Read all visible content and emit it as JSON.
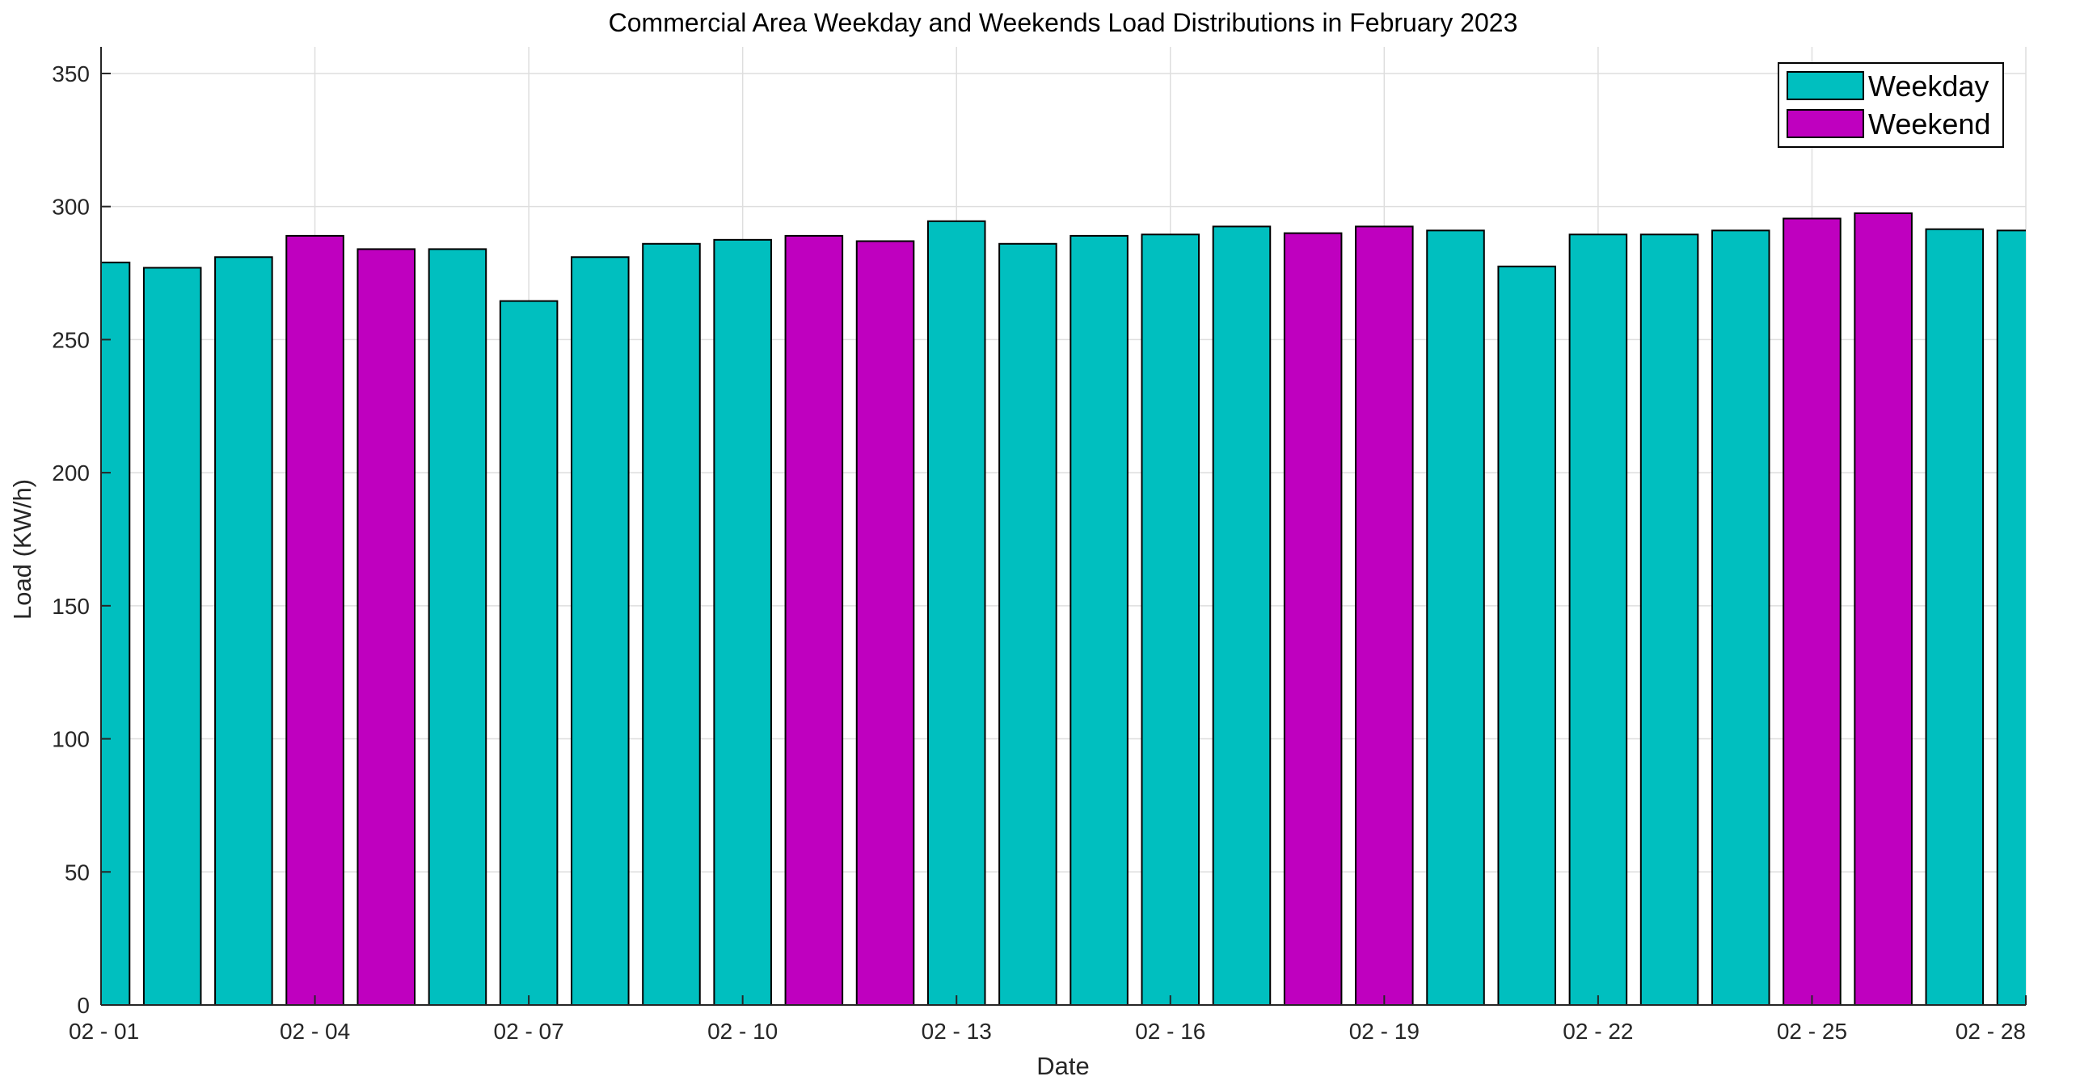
{
  "chart_data": {
    "type": "bar",
    "title": "Commercial Area Weekday and Weekends Load Distributions in February 2023",
    "xlabel": "Date",
    "ylabel": "Load (KW/h)",
    "ylim": [
      0,
      360
    ],
    "yticks": [
      0,
      50,
      100,
      150,
      200,
      250,
      300,
      350
    ],
    "xlim": [
      "02-01",
      "02-28"
    ],
    "xtick_labels": [
      "02 - 01",
      "02 - 04",
      "02 - 07",
      "02 - 10",
      "02 - 13",
      "02 - 16",
      "02 - 19",
      "02 - 22",
      "02 - 25",
      "02 - 28"
    ],
    "xtick_index": [
      0,
      3,
      6,
      9,
      12,
      15,
      18,
      21,
      24,
      27
    ],
    "grid": true,
    "legend_position": "top-right",
    "series_colors": {
      "Weekday": "#00bfbf",
      "Weekend": "#bf00bf"
    },
    "legend": [
      {
        "name": "Weekday",
        "color": "#00bfbf"
      },
      {
        "name": "Weekend",
        "color": "#bf00bf"
      }
    ],
    "dates": [
      "02-01",
      "02-02",
      "02-03",
      "02-04",
      "02-05",
      "02-06",
      "02-07",
      "02-08",
      "02-09",
      "02-10",
      "02-11",
      "02-12",
      "02-13",
      "02-14",
      "02-15",
      "02-16",
      "02-17",
      "02-18",
      "02-19",
      "02-20",
      "02-21",
      "02-22",
      "02-23",
      "02-24",
      "02-25",
      "02-26",
      "02-27",
      "02-28"
    ],
    "values": [
      279,
      277,
      281,
      289,
      284,
      284,
      264.5,
      281,
      286,
      287.5,
      289,
      287,
      294.5,
      286,
      289,
      289.5,
      292.5,
      290,
      292.5,
      291,
      277.5,
      289.5,
      289.5,
      291,
      295.5,
      297.5,
      291.5,
      291
    ],
    "categories": [
      "Weekday",
      "Weekday",
      "Weekday",
      "Weekend",
      "Weekend",
      "Weekday",
      "Weekday",
      "Weekday",
      "Weekday",
      "Weekday",
      "Weekend",
      "Weekend",
      "Weekday",
      "Weekday",
      "Weekday",
      "Weekday",
      "Weekday",
      "Weekend",
      "Weekend",
      "Weekday",
      "Weekday",
      "Weekday",
      "Weekday",
      "Weekday",
      "Weekend",
      "Weekend",
      "Weekday",
      "Weekday"
    ]
  }
}
